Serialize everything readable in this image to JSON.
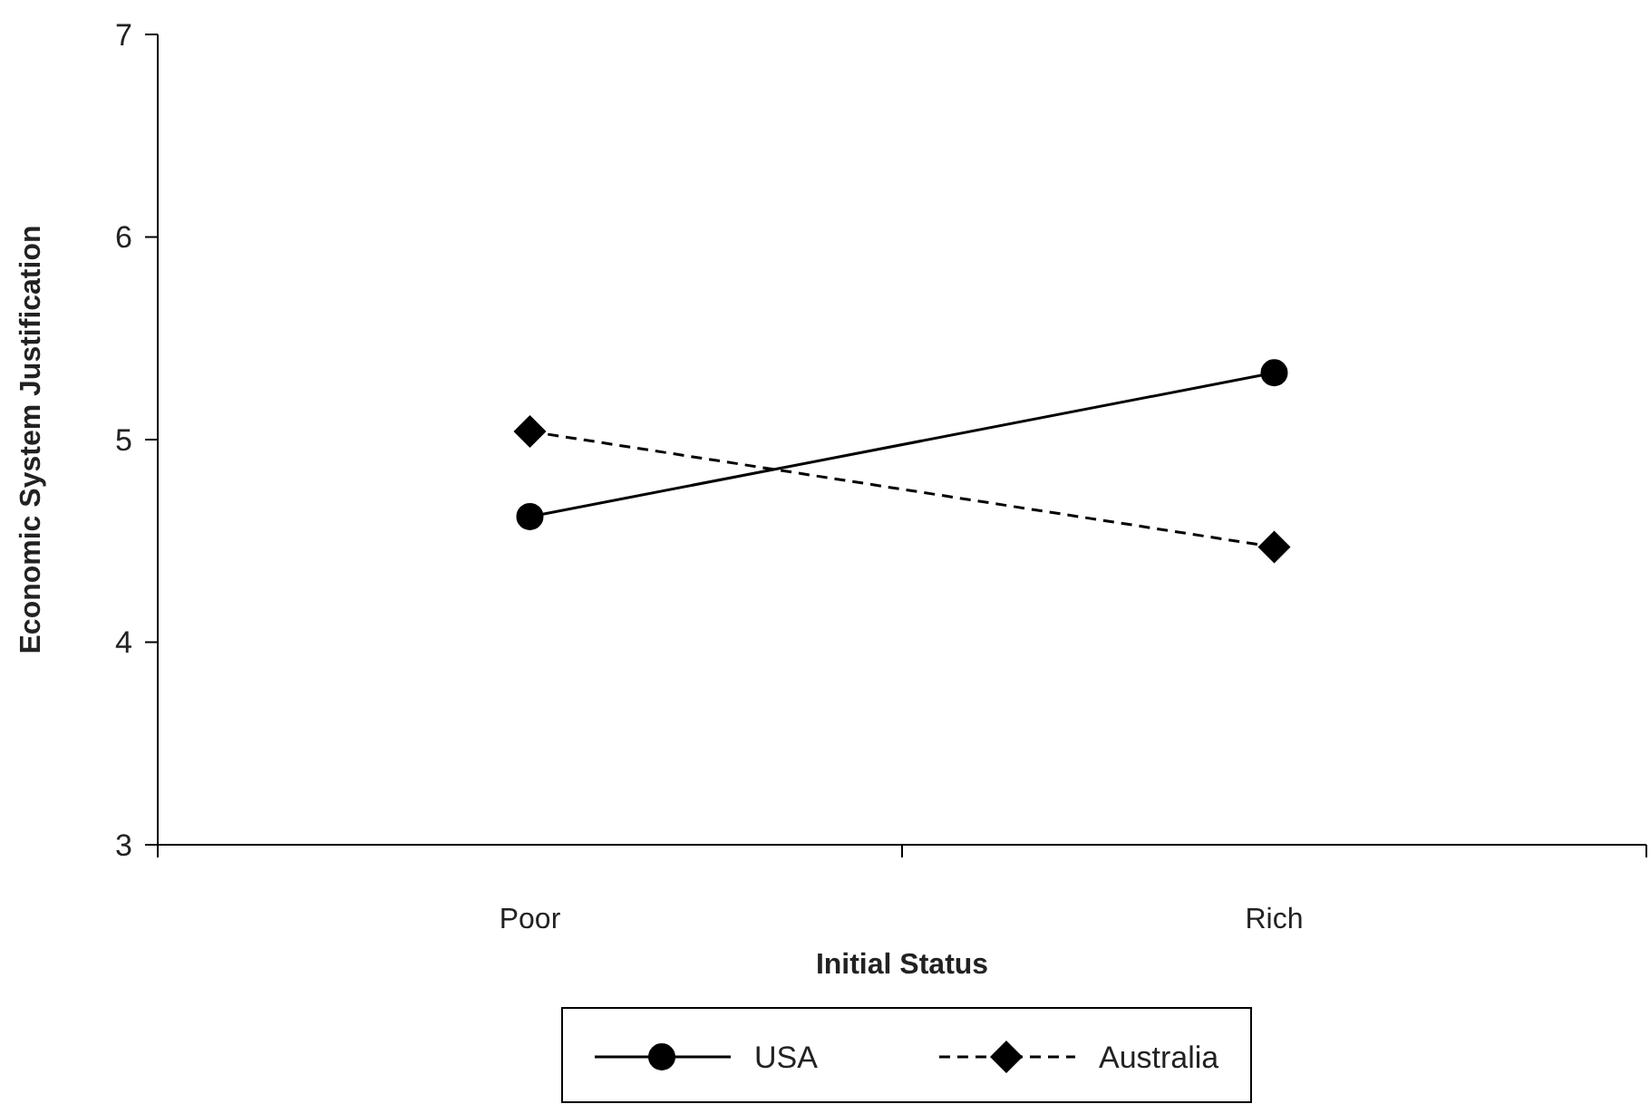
{
  "chart_data": {
    "type": "line",
    "xlabel": "Initial Status",
    "ylabel": "Economic System Justification",
    "categories": [
      "Poor",
      "Rich"
    ],
    "series": [
      {
        "name": "USA",
        "color": "#000000",
        "values": [
          4.62,
          5.33
        ],
        "marker": "circle",
        "line_style": "solid"
      },
      {
        "name": "Australia",
        "color": "#000000",
        "values": [
          5.04,
          4.47
        ],
        "marker": "diamond",
        "line_style": "dashed"
      }
    ],
    "ylim": [
      3,
      7
    ],
    "yticks": [
      3,
      4,
      5,
      6,
      7
    ],
    "grid": false,
    "legend": "bottom"
  }
}
